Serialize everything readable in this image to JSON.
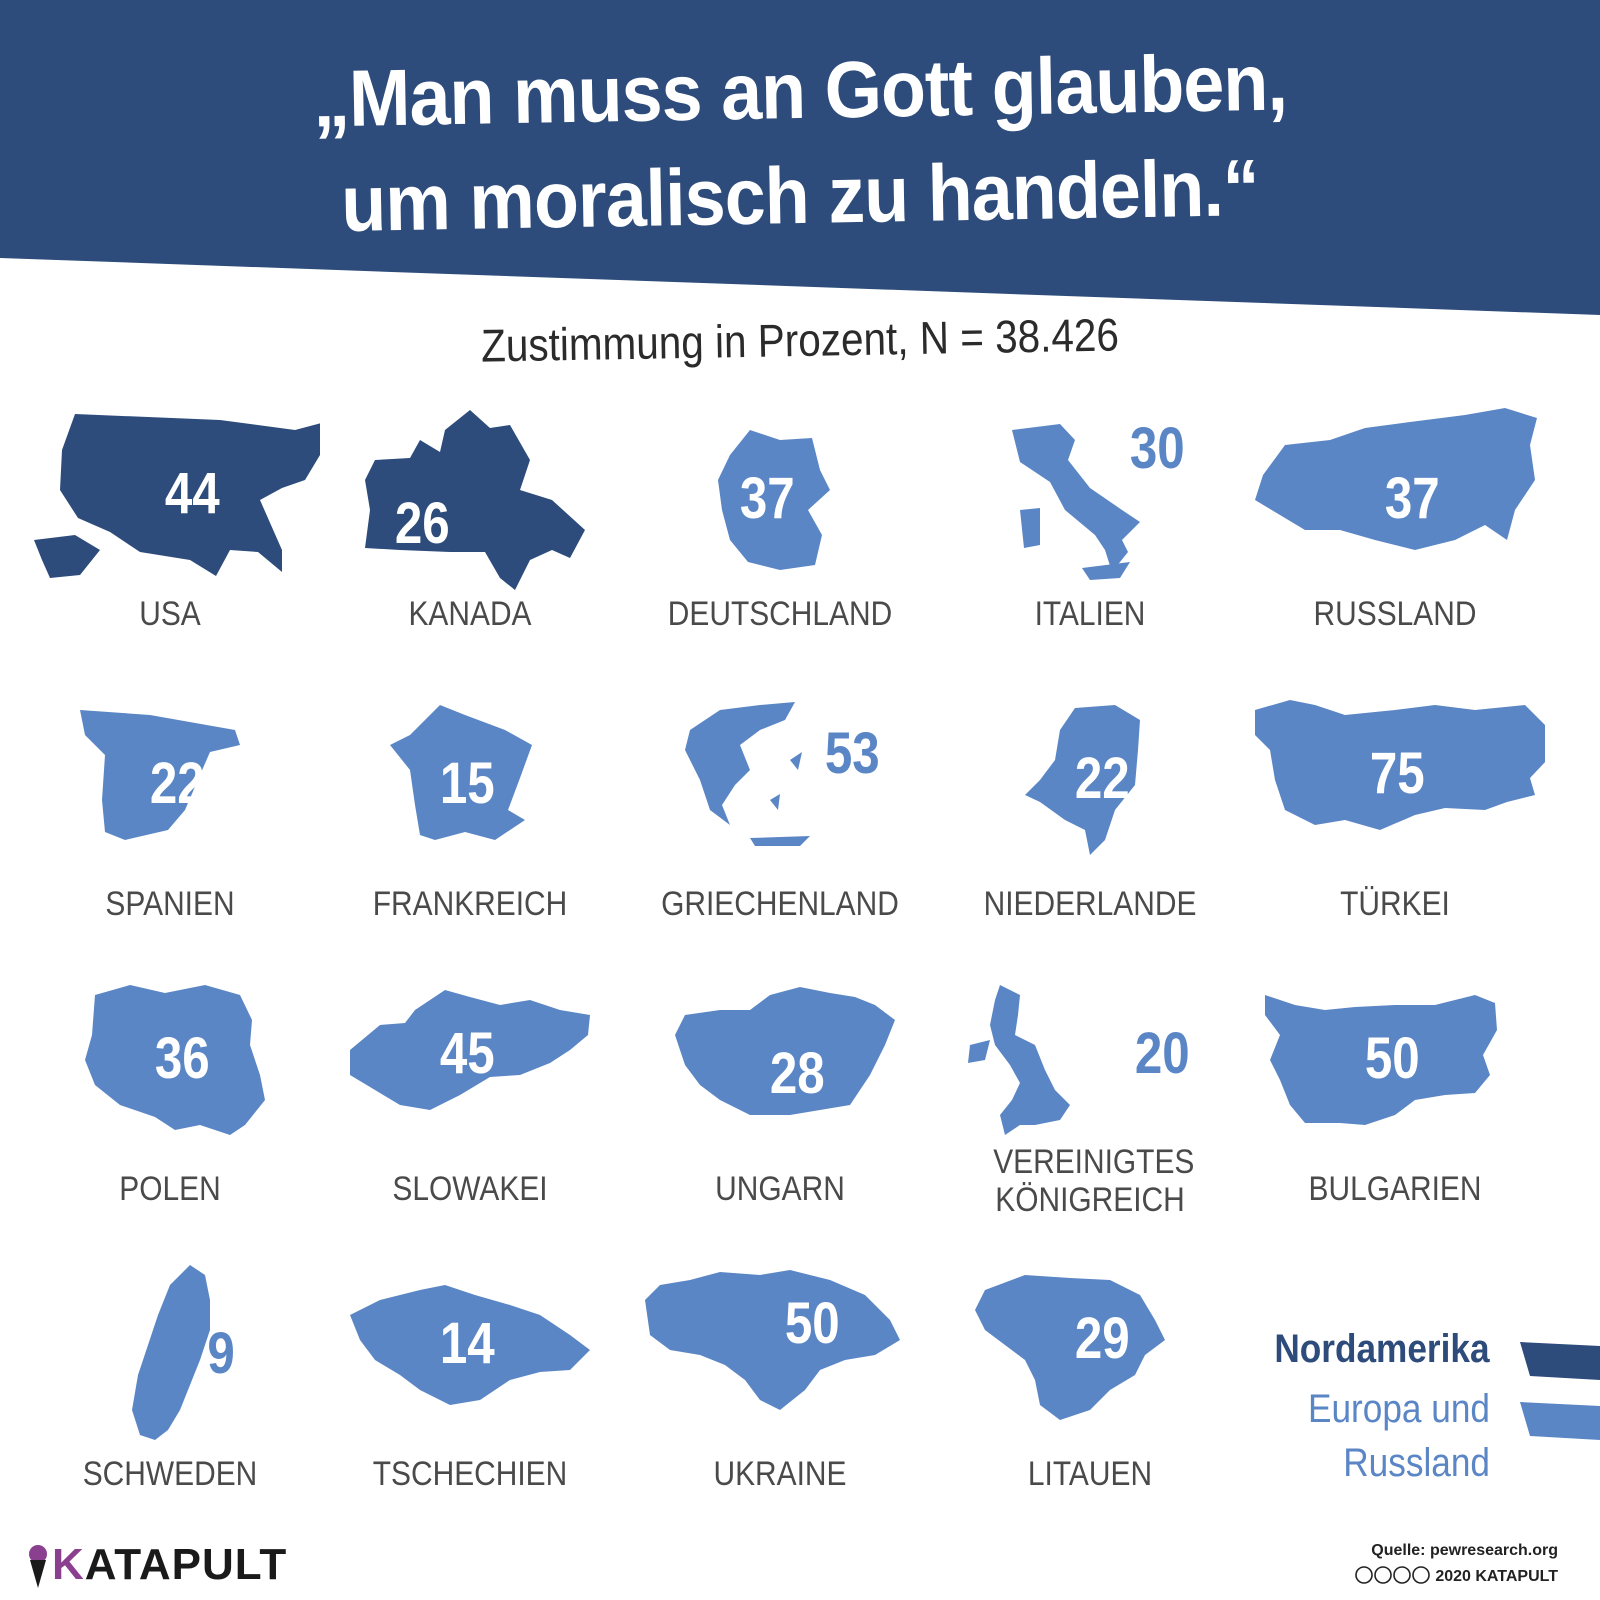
{
  "header": {
    "title_line1": "„Man muss an Gott glauben,",
    "title_line2": "um moralisch zu handeln.“",
    "subtitle": "Zustimmung in Prozent, N = 38.426"
  },
  "colors": {
    "nordamerika": "#2d4c7b",
    "europa": "#5b86c5",
    "banner": "#2d4c7b"
  },
  "countries": [
    {
      "name": "USA",
      "value": "44",
      "region": "nordamerika"
    },
    {
      "name": "KANADA",
      "value": "26",
      "region": "nordamerika"
    },
    {
      "name": "DEUTSCHLAND",
      "value": "37",
      "region": "europa"
    },
    {
      "name": "ITALIEN",
      "value": "30",
      "region": "europa"
    },
    {
      "name": "RUSSLAND",
      "value": "37",
      "region": "europa"
    },
    {
      "name": "SPANIEN",
      "value": "22",
      "region": "europa"
    },
    {
      "name": "FRANKREICH",
      "value": "15",
      "region": "europa"
    },
    {
      "name": "GRIECHENLAND",
      "value": "53",
      "region": "europa"
    },
    {
      "name": "NIEDERLANDE",
      "value": "22",
      "region": "europa"
    },
    {
      "name": "TÜRKEI",
      "value": "75",
      "region": "europa"
    },
    {
      "name": "POLEN",
      "value": "36",
      "region": "europa"
    },
    {
      "name": "SLOWAKEI",
      "value": "45",
      "region": "europa"
    },
    {
      "name": "UNGARN",
      "value": "28",
      "region": "europa"
    },
    {
      "name": "VEREINIGTES KÖNIGREICH",
      "value": "20",
      "region": "europa"
    },
    {
      "name": "BULGARIEN",
      "value": "50",
      "region": "europa"
    },
    {
      "name": "SCHWEDEN",
      "value": "9",
      "region": "europa"
    },
    {
      "name": "TSCHECHIEN",
      "value": "14",
      "region": "europa"
    },
    {
      "name": "UKRAINE",
      "value": "50",
      "region": "europa"
    },
    {
      "name": "LITAUEN",
      "value": "29",
      "region": "europa"
    }
  ],
  "legend": {
    "nordamerika_label": "Nordamerika",
    "europa_label": "Europa und Russland"
  },
  "footer": {
    "logo_text": "KATAPULT",
    "source": "Quelle: pewresearch.org",
    "copyright": "2020 KATAPULT"
  }
}
